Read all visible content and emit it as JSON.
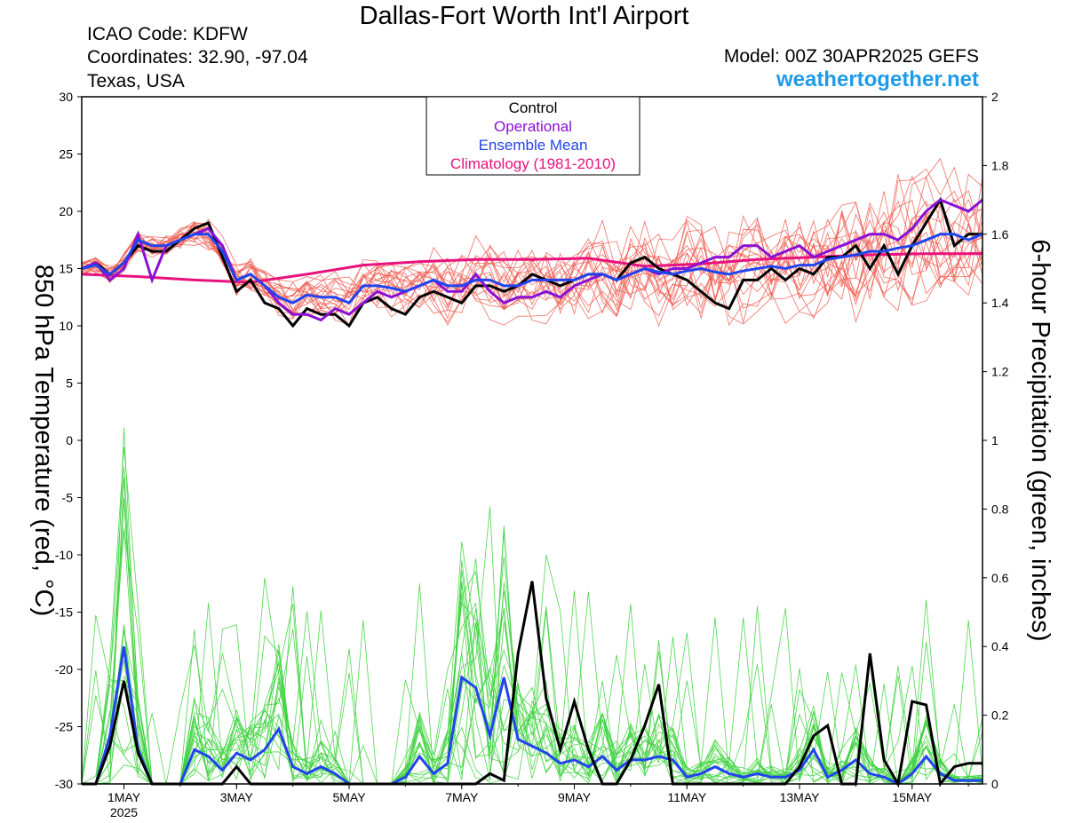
{
  "header": {
    "title": "Dallas-Fort Worth Int'l Airport",
    "icao": "ICAO Code: KDFW",
    "coordinates": "Coordinates: 32.90, -97.04",
    "region": "Texas, USA",
    "model": "Model: 00Z 30APR2025 GEFS",
    "site": "weathertogether.net"
  },
  "colors": {
    "members_temp": "#f0584c",
    "members_precip": "#3dd13d",
    "control": "#000000",
    "operational": "#8a10d6",
    "mean": "#2244ee",
    "climatology": "#e8127e",
    "site": "#1e9bea"
  },
  "chart_data": {
    "type": "line",
    "x_unit": "days since 00Z 30APR2025",
    "xlim": [
      0,
      16
    ],
    "x_ticks": [
      {
        "x": 0.75,
        "label": "1MAY",
        "sublabel": "2025"
      },
      {
        "x": 2.75,
        "label": "3MAY"
      },
      {
        "x": 4.75,
        "label": "5MAY"
      },
      {
        "x": 6.75,
        "label": "7MAY"
      },
      {
        "x": 8.75,
        "label": "9MAY"
      },
      {
        "x": 10.75,
        "label": "11MAY"
      },
      {
        "x": 12.75,
        "label": "13MAY"
      },
      {
        "x": 14.75,
        "label": "15MAY"
      }
    ],
    "y_left": {
      "label": "850 hPa Temperature (red, °C)",
      "lim": [
        -30,
        30
      ],
      "ticks": [
        30,
        25,
        20,
        15,
        10,
        5,
        0,
        -5,
        -10,
        -15,
        -20,
        -25,
        -30
      ]
    },
    "y_right": {
      "label": "6-hour Precipitation (green, inches)",
      "lim": [
        0,
        2
      ],
      "ticks": [
        2,
        1.8,
        1.6,
        1.4,
        1.2,
        1,
        0.8,
        0.6,
        0.4,
        0.2,
        0
      ]
    },
    "legend": {
      "placement": "top-center",
      "entries": [
        {
          "label": "Control",
          "color": "#000000"
        },
        {
          "label": "Operational",
          "color": "#8a10d6"
        },
        {
          "label": "Ensemble Mean",
          "color": "#2244ee"
        },
        {
          "label": "Climatology (1981-2010)",
          "color": "#e8127e"
        }
      ]
    },
    "series": {
      "control_temp": {
        "x": [
          0,
          0.25,
          0.5,
          0.75,
          1,
          1.25,
          1.5,
          1.75,
          2,
          2.25,
          2.5,
          2.75,
          3,
          3.25,
          3.5,
          3.75,
          4,
          4.25,
          4.5,
          4.75,
          5,
          5.25,
          5.5,
          5.75,
          6,
          6.25,
          6.5,
          6.75,
          7,
          7.25,
          7.5,
          7.75,
          8,
          8.25,
          8.5,
          8.75,
          9,
          9.25,
          9.5,
          9.75,
          10,
          10.25,
          10.5,
          10.75,
          11,
          11.25,
          11.5,
          11.75,
          12,
          12.25,
          12.5,
          12.75,
          13,
          13.25,
          13.5,
          13.75,
          14,
          14.25,
          14.5,
          14.75,
          15,
          15.25,
          15.5,
          15.75,
          16
        ],
        "y": [
          15,
          15.5,
          14.5,
          15.5,
          17,
          16.5,
          16.5,
          17.5,
          18.5,
          19,
          16,
          13,
          14,
          12,
          11.5,
          10,
          11.5,
          11,
          11,
          10,
          12,
          12.5,
          11.5,
          11,
          12.5,
          13,
          12.5,
          12,
          13.5,
          13.5,
          13,
          13.5,
          14.5,
          14,
          13.5,
          14,
          14.5,
          14.5,
          14,
          15.5,
          16,
          15,
          14.5,
          14,
          13,
          12,
          11.5,
          14,
          14,
          15,
          14,
          15,
          14.5,
          16,
          16,
          17,
          15,
          17,
          14.5,
          17,
          19,
          21,
          17,
          18,
          18
        ]
      },
      "operational_temp": {
        "x": [
          0,
          0.25,
          0.5,
          0.75,
          1,
          1.25,
          1.5,
          1.75,
          2,
          2.25,
          2.5,
          2.75,
          3,
          3.25,
          3.5,
          3.75,
          4,
          4.25,
          4.5,
          4.75,
          5,
          5.25,
          5.5,
          5.75,
          6,
          6.25,
          6.5,
          6.75,
          7,
          7.25,
          7.5,
          7.75,
          8,
          8.25,
          8.5,
          8.75,
          9,
          9.25,
          9.5,
          9.75,
          10,
          10.25,
          10.5,
          10.75,
          11,
          11.25,
          11.5,
          11.75,
          12,
          12.25,
          12.5,
          12.75,
          13,
          13.25,
          13.5,
          13.75,
          14,
          14.25,
          14.5,
          14.75,
          15,
          15.25,
          15.5,
          15.75,
          16
        ],
        "y": [
          15,
          15.5,
          14,
          15,
          18,
          14,
          17,
          17.5,
          18,
          18.5,
          17,
          14,
          14.5,
          13.5,
          12,
          11,
          11,
          10.5,
          11.5,
          11,
          12,
          13,
          12.5,
          13,
          13.5,
          14,
          13,
          13,
          14.5,
          13,
          12,
          12.5,
          12.5,
          13,
          12.5,
          13.5,
          14,
          14.5,
          14,
          14.5,
          15,
          14.5,
          15,
          15,
          15.5,
          16,
          16,
          17,
          17,
          16,
          16.5,
          17,
          16,
          16.5,
          17,
          17.5,
          18,
          18,
          17.5,
          18.5,
          20,
          21,
          20.5,
          20,
          21
        ]
      },
      "mean_temp": {
        "x": [
          0,
          0.25,
          0.5,
          0.75,
          1,
          1.25,
          1.5,
          1.75,
          2,
          2.25,
          2.5,
          2.75,
          3,
          3.25,
          3.5,
          3.75,
          4,
          4.25,
          4.5,
          4.75,
          5,
          5.25,
          5.5,
          5.75,
          6,
          6.25,
          6.5,
          6.75,
          7,
          7.25,
          7.5,
          7.75,
          8,
          8.25,
          8.5,
          8.75,
          9,
          9.25,
          9.5,
          9.75,
          10,
          10.25,
          10.5,
          10.75,
          11,
          11.25,
          11.5,
          11.75,
          12,
          12.25,
          12.5,
          12.75,
          13,
          13.25,
          13.5,
          13.75,
          14,
          14.25,
          14.5,
          14.75,
          15,
          15.25,
          15.5,
          15.75,
          16
        ],
        "y": [
          15,
          15.3,
          14.5,
          15.5,
          17.5,
          17,
          17,
          17.5,
          18,
          18,
          16.5,
          14,
          14.5,
          13.5,
          12.5,
          12,
          12.7,
          12.5,
          12.5,
          12,
          13.5,
          13.5,
          13.3,
          13,
          13.5,
          14,
          13.5,
          13.5,
          14,
          14,
          13.5,
          13.5,
          14,
          14,
          14,
          14,
          14.5,
          14.5,
          14,
          14.5,
          15,
          14.7,
          14.5,
          14.8,
          15,
          14.7,
          14.5,
          14.8,
          15,
          15.2,
          15,
          15.3,
          15.3,
          15.8,
          16,
          16.2,
          16.5,
          16.5,
          16.8,
          17,
          17.5,
          18,
          18,
          17.5,
          18
        ]
      },
      "climatology_temp": {
        "x": [
          0,
          1,
          2,
          3,
          4,
          5,
          6,
          7,
          8,
          9,
          10,
          11,
          12,
          13,
          14,
          15,
          16
        ],
        "y": [
          14.5,
          14.3,
          14,
          13.8,
          14.5,
          15.3,
          15.6,
          15.8,
          15.8,
          15.9,
          15.2,
          15.4,
          15.8,
          16,
          16.2,
          16.3,
          16.3
        ]
      },
      "control_precip": {
        "x": [
          0,
          0.25,
          0.5,
          0.75,
          1,
          1.25,
          1.5,
          1.75,
          2,
          2.25,
          2.5,
          2.75,
          3,
          3.25,
          3.5,
          3.75,
          4,
          4.25,
          4.5,
          4.75,
          5,
          5.25,
          5.5,
          5.75,
          6,
          6.25,
          6.5,
          6.75,
          7,
          7.25,
          7.5,
          7.75,
          8,
          8.25,
          8.5,
          8.75,
          9,
          9.25,
          9.5,
          9.75,
          10,
          10.25,
          10.5,
          10.75,
          11,
          11.25,
          11.5,
          11.75,
          12,
          12.25,
          12.5,
          12.75,
          13,
          13.25,
          13.5,
          13.75,
          14,
          14.25,
          14.5,
          14.75,
          15,
          15.25,
          15.5,
          15.75,
          16
        ],
        "y": [
          0,
          0,
          0.11,
          0.3,
          0.09,
          0,
          0,
          0,
          0,
          0,
          0,
          0.05,
          0,
          0,
          0,
          0,
          0,
          0,
          0,
          0,
          0,
          0,
          0,
          0,
          0,
          0,
          0,
          0,
          0,
          0.03,
          0.01,
          0.38,
          0.59,
          0.25,
          0.1,
          0.24,
          0.1,
          0,
          0,
          0.07,
          0.17,
          0.29,
          0,
          0,
          0,
          0,
          0,
          0,
          0,
          0,
          0,
          0.05,
          0.14,
          0.17,
          0,
          0,
          0.38,
          0.07,
          0,
          0.24,
          0.23,
          0,
          0.05,
          0.06,
          0.06
        ]
      },
      "mean_precip": {
        "x": [
          0,
          0.25,
          0.5,
          0.75,
          1,
          1.25,
          1.5,
          1.75,
          2,
          2.25,
          2.5,
          2.75,
          3,
          3.25,
          3.5,
          3.75,
          4,
          4.25,
          4.5,
          4.75,
          5,
          5.25,
          5.5,
          5.75,
          6,
          6.25,
          6.5,
          6.75,
          7,
          7.25,
          7.5,
          7.75,
          8,
          8.25,
          8.5,
          8.75,
          9,
          9.25,
          9.5,
          9.75,
          10,
          10.25,
          10.5,
          10.75,
          11,
          11.25,
          11.5,
          11.75,
          12,
          12.25,
          12.5,
          12.75,
          13,
          13.25,
          13.5,
          13.75,
          14,
          14.25,
          14.5,
          14.75,
          15,
          15.25,
          15.5,
          15.75,
          16
        ],
        "y": [
          0,
          0,
          0.14,
          0.4,
          0.1,
          0,
          0,
          0,
          0.1,
          0.08,
          0.04,
          0.09,
          0.07,
          0.1,
          0.16,
          0.05,
          0.03,
          0.05,
          0.03,
          0,
          0,
          0,
          0,
          0.02,
          0.08,
          0.03,
          0.06,
          0.31,
          0.28,
          0.14,
          0.31,
          0.13,
          0.11,
          0.09,
          0.06,
          0.07,
          0.05,
          0.08,
          0.04,
          0.07,
          0.07,
          0.08,
          0.07,
          0.02,
          0.03,
          0.05,
          0.03,
          0.02,
          0.03,
          0.02,
          0.02,
          0.04,
          0.1,
          0.02,
          0.04,
          0.07,
          0.03,
          0.02,
          0,
          0.03,
          0.08,
          0.03,
          0.01,
          0.01,
          0.01
        ]
      }
    }
  }
}
